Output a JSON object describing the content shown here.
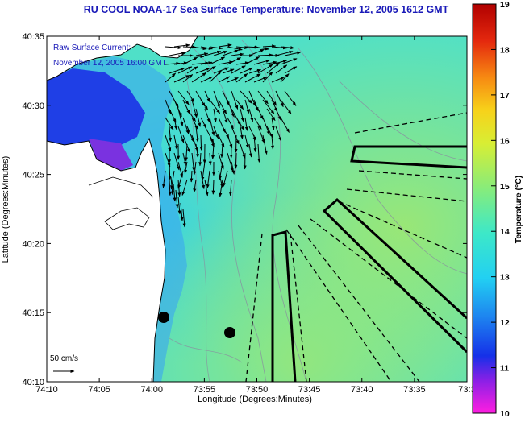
{
  "title": "RU COOL  NOAA-17  Sea Surface Temperature:  November 12, 2005 1612 GMT",
  "overlay": {
    "line1": "Raw Surface Current:",
    "line2": "November 12, 2005 16:00 GMT"
  },
  "scale_label": "50 cm/s",
  "colors": {
    "ocean": "#4fe0c8",
    "land": "#ffffff",
    "cold_water": "#1f3fe6",
    "title_text": "#1a1ab8",
    "axis": "#000000"
  },
  "chart_data": {
    "type": "heatmap",
    "title": "RU COOL  NOAA-17  Sea Surface Temperature:  November 12, 2005 1612 GMT",
    "xlabel": "Longitude (Degrees:Minutes)",
    "ylabel": "Latitude (Degrees:Minutes)",
    "x_ticks": [
      "74:10",
      "74:05",
      "74:00",
      "73:55",
      "73:50",
      "73:45",
      "73:40",
      "73:35",
      "73:3"
    ],
    "y_ticks": [
      "40:35",
      "40:30",
      "40:25",
      "40:20",
      "40:15",
      "40:10"
    ],
    "xlim_min_west": [
      74.1667,
      73.5333
    ],
    "ylim_deg_north": [
      40.1667,
      40.5833
    ],
    "colorbar": {
      "label": "Temperature (°C)",
      "range": [
        10,
        19
      ],
      "ticks": [
        "19",
        "18",
        "17",
        "16",
        "15",
        "14",
        "13",
        "12",
        "11",
        "10"
      ]
    },
    "grid": false,
    "vector_scale": "50 cm/s",
    "vector_time": "November 12, 2005 16:00 GMT"
  }
}
